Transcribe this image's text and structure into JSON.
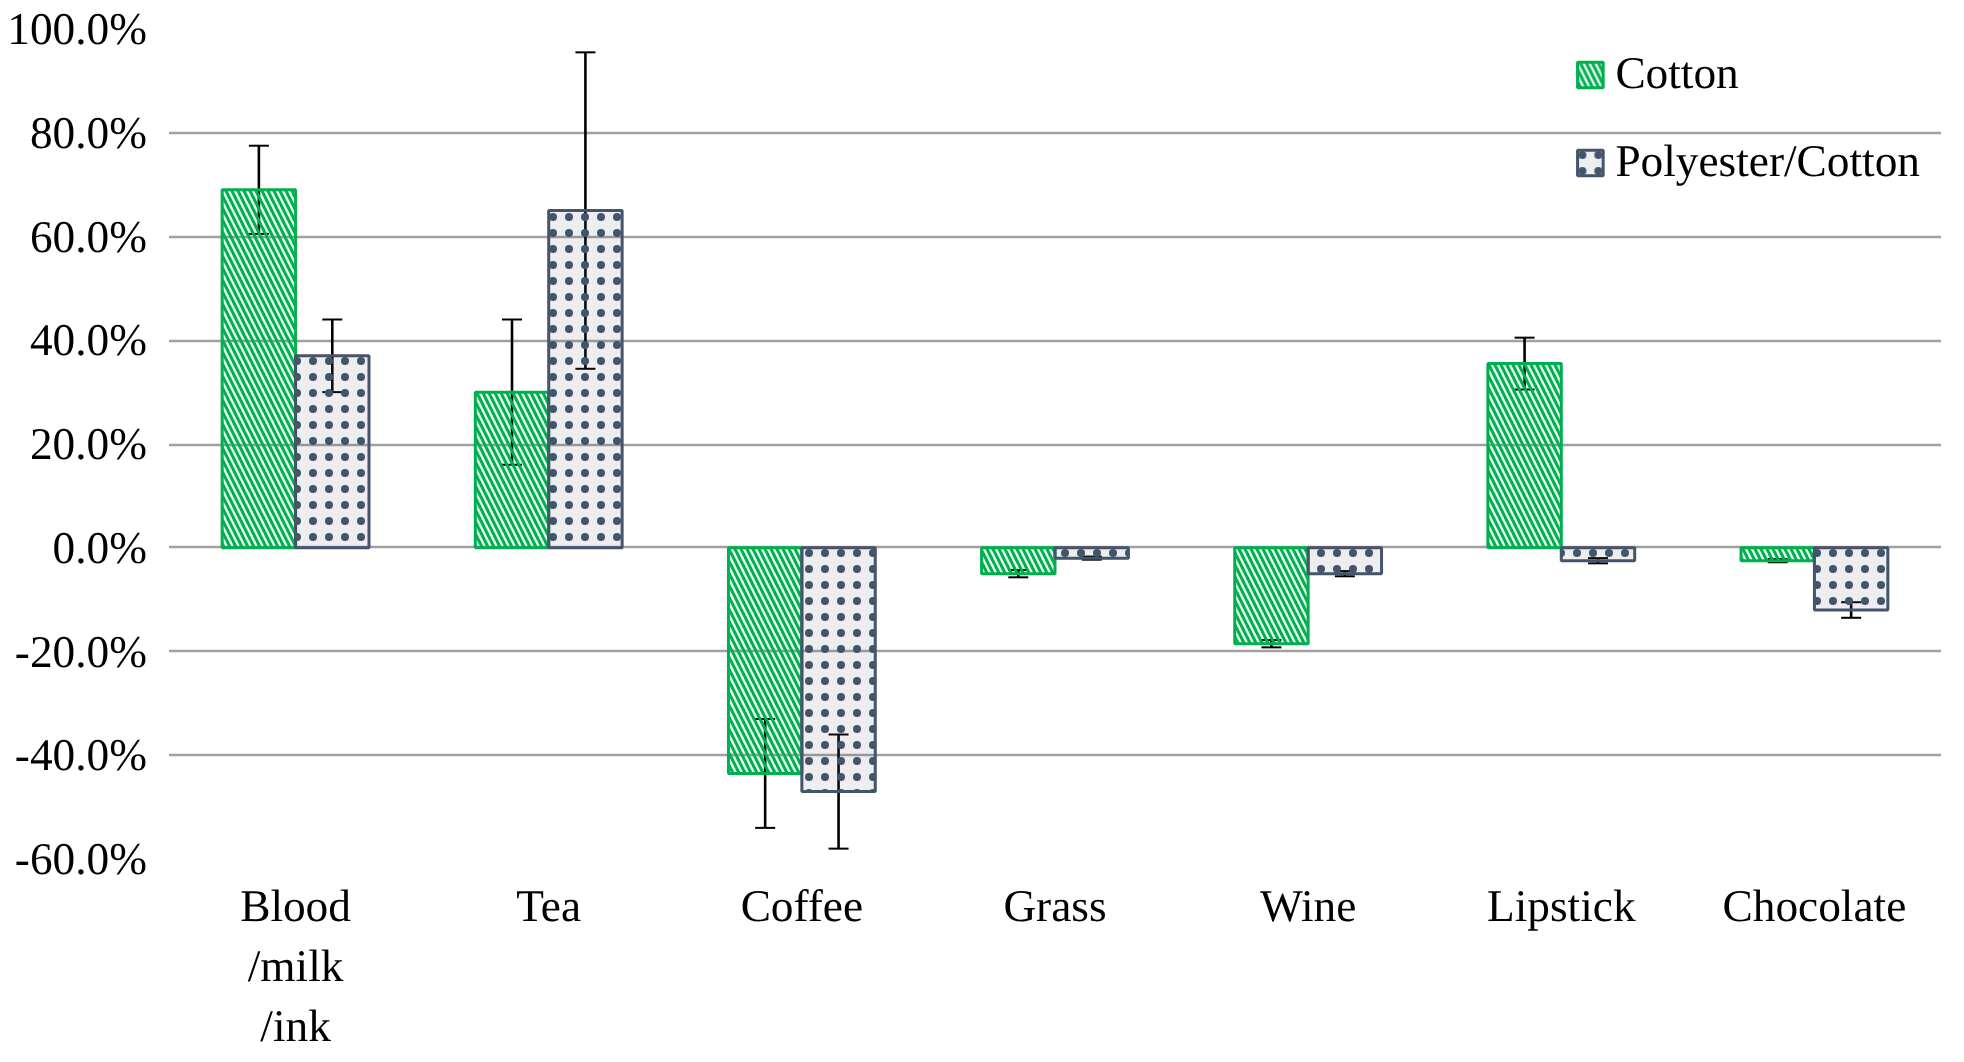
{
  "chart_data": {
    "type": "bar",
    "categories": [
      "Blood\n/milk\n/ink",
      "Tea",
      "Coffee",
      "Grass",
      "Wine",
      "Lipstick",
      "Chocolate"
    ],
    "series": [
      {
        "name": "Cotton",
        "color": "#00b050",
        "values": [
          69,
          30,
          -43.5,
          -5,
          -18.5,
          35.5,
          -2.5
        ],
        "errors": [
          8.5,
          14,
          10.5,
          0.7,
          0.7,
          5,
          0.3
        ]
      },
      {
        "name": "Polyester/Cotton",
        "color": "#44546a",
        "values": [
          37,
          65,
          -47,
          -2,
          -5,
          -2.5,
          -12
        ],
        "errors": [
          7,
          30.5,
          11,
          0.3,
          0.5,
          0.5,
          1.5
        ]
      }
    ],
    "ylim": [
      -60,
      100
    ],
    "yticks": [
      {
        "value": -60,
        "label": "-60.0%"
      },
      {
        "value": -40,
        "label": "-40.0%"
      },
      {
        "value": -20,
        "label": "-20.0%"
      },
      {
        "value": 0,
        "label": "0.0%"
      },
      {
        "value": 20,
        "label": "20.0%"
      },
      {
        "value": 40,
        "label": "40.0%"
      },
      {
        "value": 60,
        "label": "60.0%"
      },
      {
        "value": 80,
        "label": "80.0%"
      },
      {
        "value": 100,
        "label": "100.0%"
      }
    ],
    "grid": "y",
    "legend": "top right"
  }
}
